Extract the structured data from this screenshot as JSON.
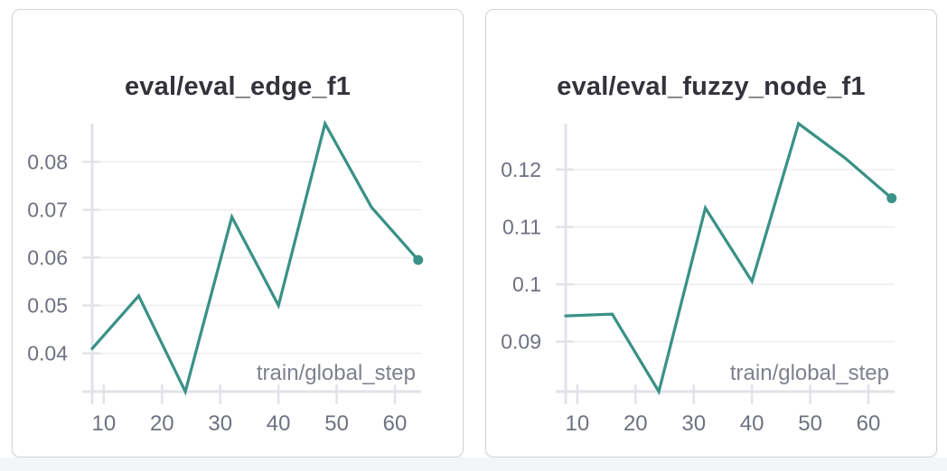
{
  "page": {
    "background_color": "#ffffff",
    "footer_strip_color": "#f4f5f7",
    "panel_border_color": "#d2d3da"
  },
  "styles": {
    "title_color": "#32333b",
    "tick_label_color": "#6e7180",
    "axis_label_color": "#7e818d",
    "axis_color": "#e2e3e8",
    "grid_color": "#ededf0"
  },
  "chart_data": [
    {
      "type": "line",
      "title": "eval/eval_edge_f1",
      "xlabel": "train/global_step",
      "ylabel": "",
      "x": [
        8,
        16,
        24,
        32,
        40,
        48,
        56,
        64
      ],
      "y": [
        0.041,
        0.052,
        0.032,
        0.0685,
        0.05,
        0.088,
        0.0705,
        0.0595
      ],
      "xlim": [
        8,
        64.5
      ],
      "ylim": [
        0.032,
        0.088
      ],
      "xticks": [
        10,
        20,
        30,
        40,
        50,
        60
      ],
      "xtick_labels": [
        "10",
        "20",
        "30",
        "40",
        "50",
        "60"
      ],
      "yticks": [
        0.04,
        0.05,
        0.06,
        0.07,
        0.08
      ],
      "ytick_labels": [
        "0.04",
        "0.05",
        "0.06",
        "0.07",
        "0.08"
      ],
      "line_color": "#3a9186",
      "marker_last_point": true,
      "grid": "horizontal",
      "legend": "none"
    },
    {
      "type": "line",
      "title": "eval/eval_fuzzy_node_f1",
      "xlabel": "train/global_step",
      "ylabel": "",
      "x": [
        8,
        16,
        24,
        32,
        40,
        48,
        56,
        64
      ],
      "y": [
        0.0945,
        0.0948,
        0.0813,
        0.1133,
        0.1005,
        0.128,
        0.122,
        0.115
      ],
      "xlim": [
        8,
        64.5
      ],
      "ylim": [
        0.0813,
        0.128
      ],
      "xticks": [
        10,
        20,
        30,
        40,
        50,
        60
      ],
      "xtick_labels": [
        "10",
        "20",
        "30",
        "40",
        "50",
        "60"
      ],
      "yticks": [
        0.09,
        0.1,
        0.11,
        0.12
      ],
      "ytick_labels": [
        "0.09",
        "0.1",
        "0.11",
        "0.12"
      ],
      "line_color": "#3a9186",
      "marker_last_point": true,
      "grid": "horizontal",
      "legend": "none"
    }
  ]
}
